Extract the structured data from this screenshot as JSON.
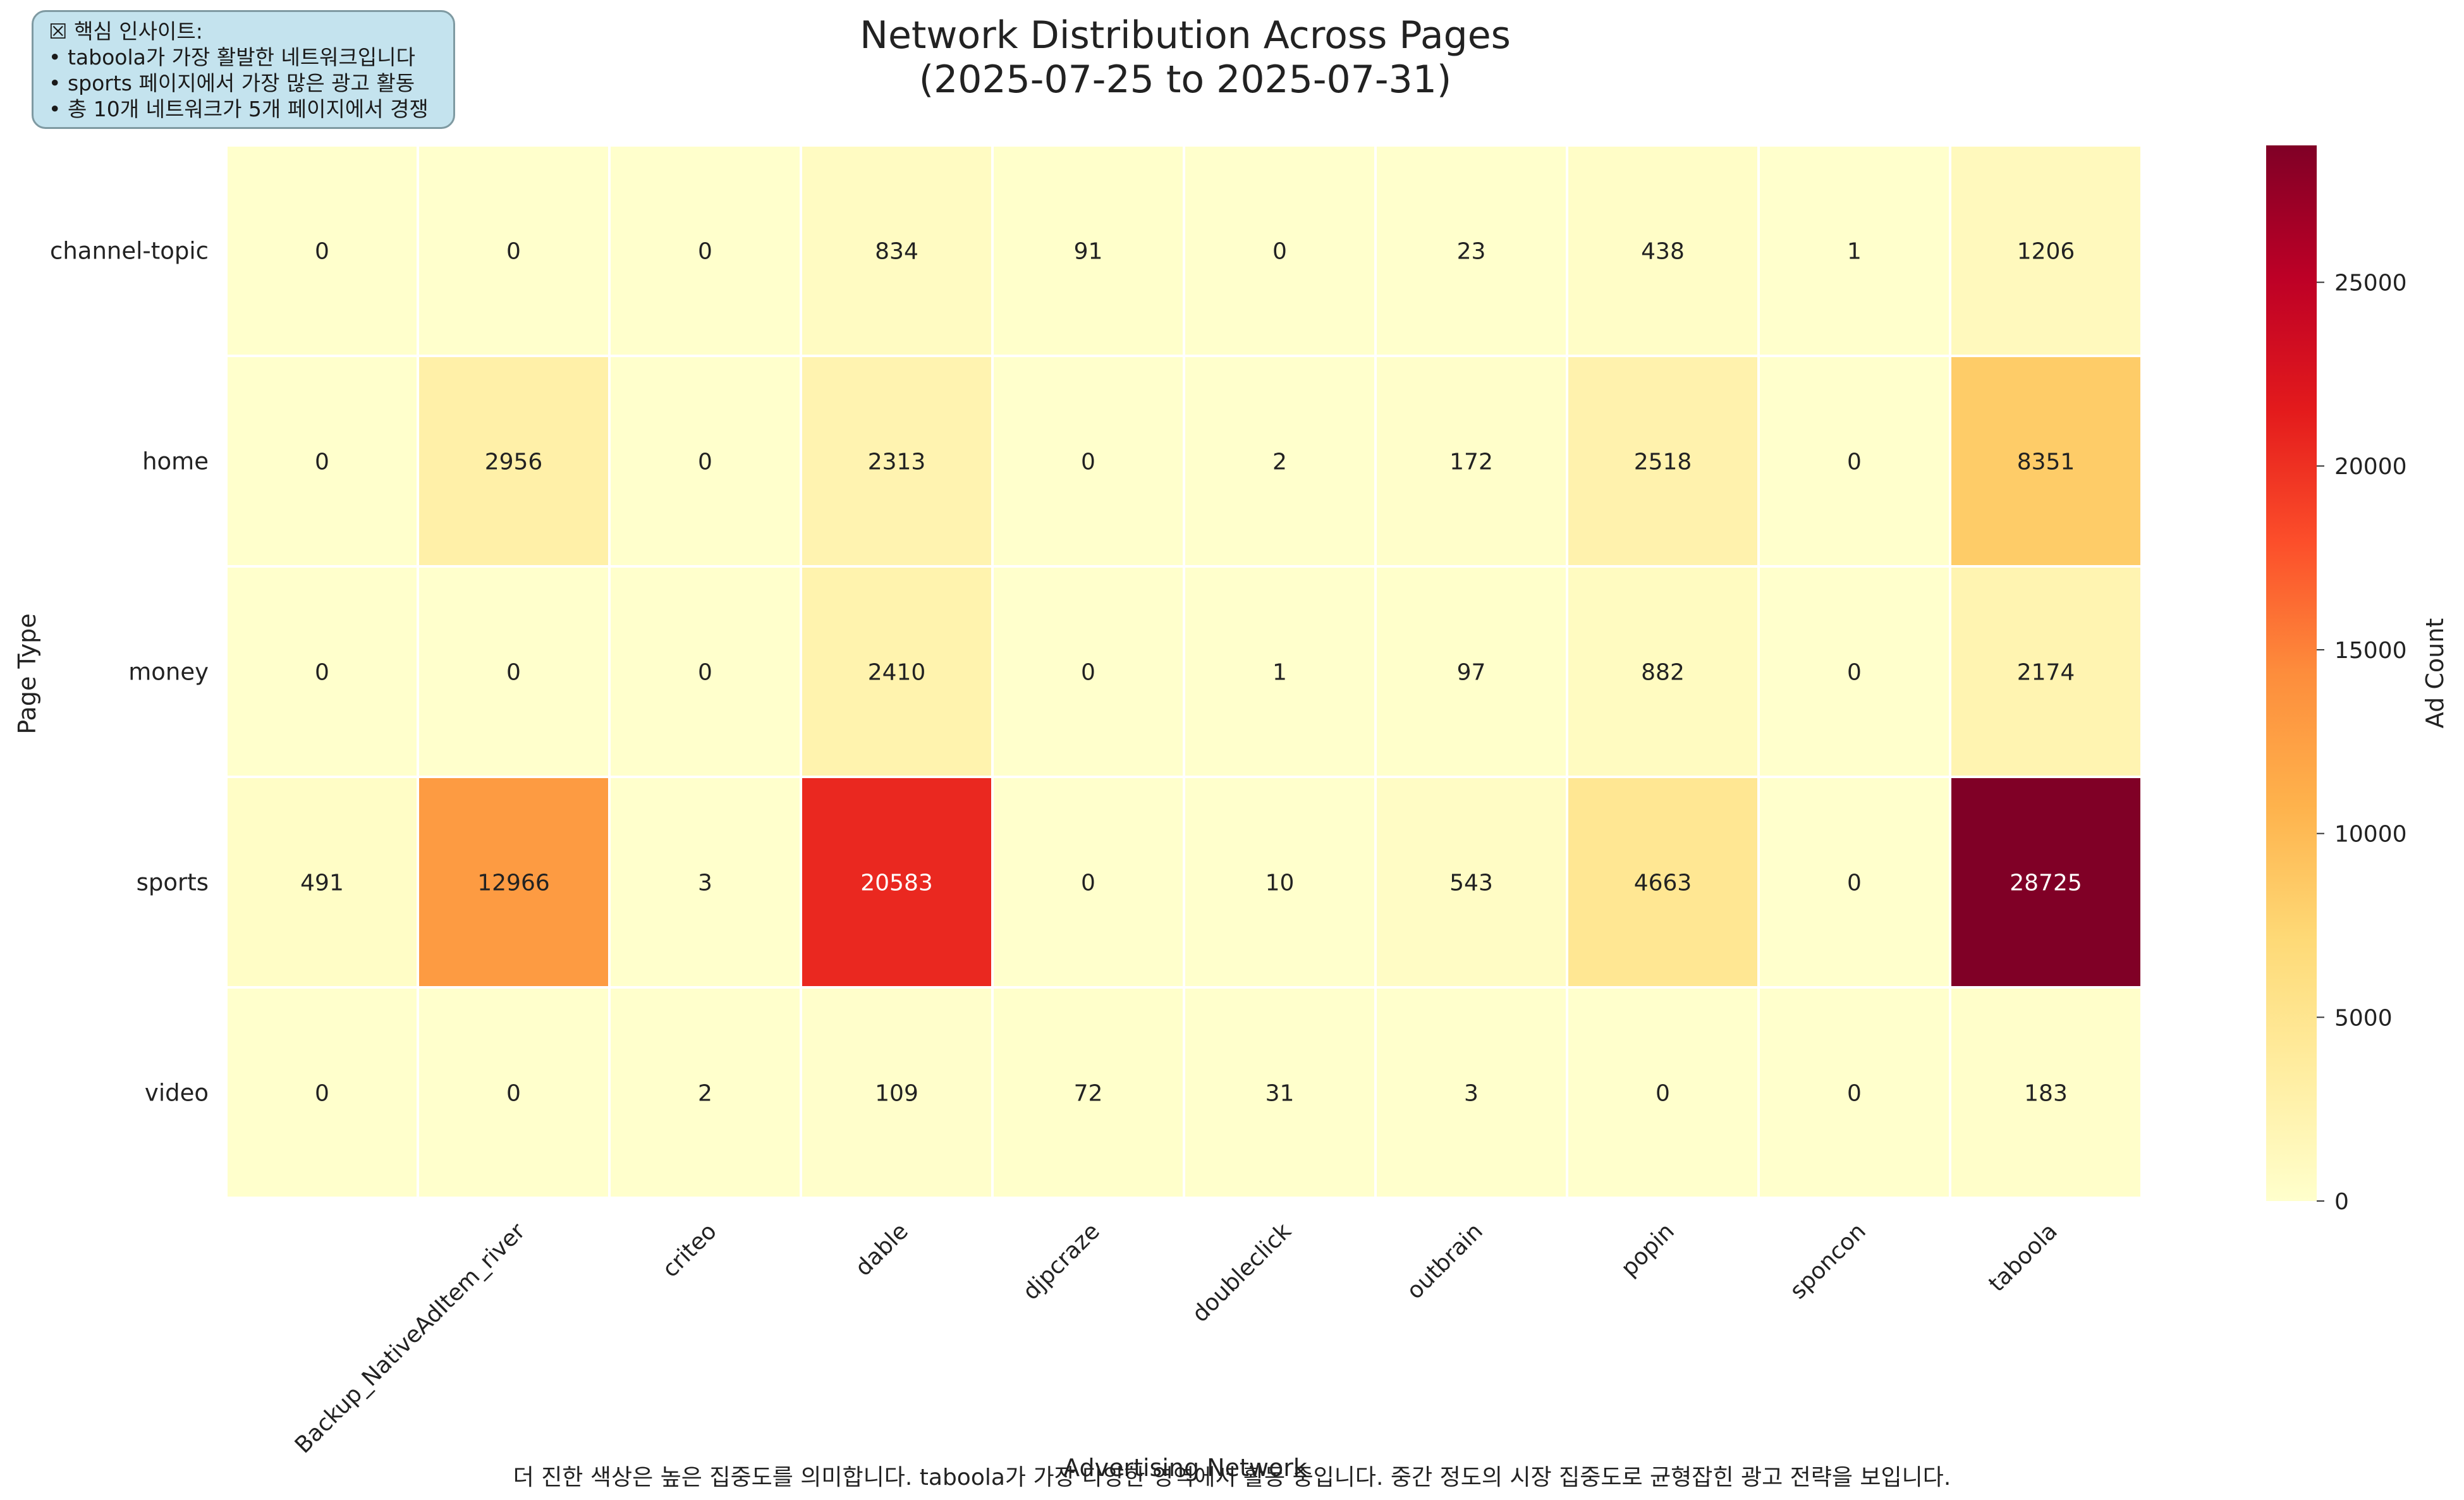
{
  "chart_data": {
    "type": "heatmap",
    "title": [
      "Network Distribution Across Pages",
      "(2025-07-25 to 2025-07-31)"
    ],
    "xlabel": "Advertising Network",
    "ylabel": "Page Type",
    "x_categories": [
      "",
      "Backup_NativeAdItem_river",
      "criteo",
      "dable",
      "djpcraze",
      "doubleclick",
      "outbrain",
      "popin",
      "sponcon",
      "taboola"
    ],
    "y_categories": [
      "channel-topic",
      "home",
      "money",
      "sports",
      "video"
    ],
    "values": [
      [
        0,
        0,
        0,
        834,
        91,
        0,
        23,
        438,
        1,
        1206
      ],
      [
        0,
        2956,
        0,
        2313,
        0,
        2,
        172,
        2518,
        0,
        8351
      ],
      [
        0,
        0,
        0,
        2410,
        0,
        1,
        97,
        882,
        0,
        2174
      ],
      [
        491,
        12966,
        3,
        20583,
        0,
        10,
        543,
        4663,
        0,
        28725
      ],
      [
        0,
        0,
        2,
        109,
        72,
        31,
        3,
        0,
        0,
        183
      ]
    ],
    "colorbar": {
      "label": "Ad Count",
      "colormap": "YlOrRd",
      "range": [
        0,
        28725
      ],
      "ticks": [
        0,
        5000,
        10000,
        15000,
        20000,
        25000
      ]
    },
    "colors": [
      "#ffffcc",
      "#ffeda0",
      "#fed976",
      "#feb24c",
      "#fd8d3c",
      "#fc4e2a",
      "#e31a1c",
      "#bd0026",
      "#800026"
    ]
  },
  "insight_box": {
    "title": "☒ 핵심 인사이트:",
    "lines": [
      "• taboola가 가장 활발한 네트워크입니다",
      "• sports 페이지에서 가장 많은 광고 활동",
      "• 총 10개 네트워크가 5개 페이지에서 경쟁"
    ]
  },
  "caption": "더 진한 색상은 높은 집중도를 의미합니다. taboola가 가장 다양한 영역에서 활동 중입니다. 중간 정도의 시장 집중도로 균형잡힌 광고 전략을 보입니다."
}
